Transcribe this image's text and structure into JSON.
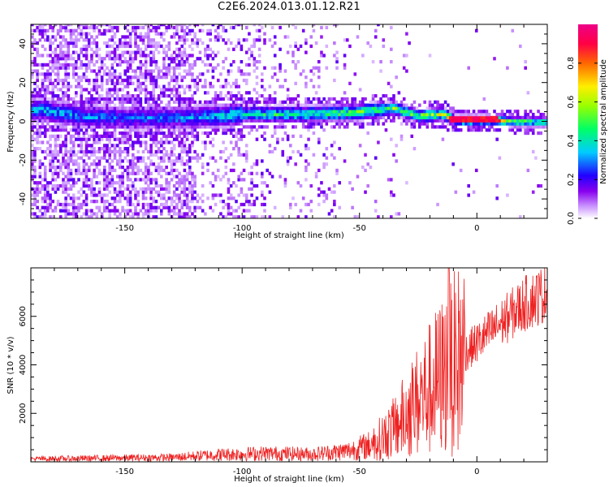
{
  "title": "C2E6.2024.013.01.12.R21",
  "chart_data": [
    {
      "type": "heatmap",
      "xlabel": "Height of straight line (km)",
      "ylabel": "Frequency (Hz)",
      "xlim": [
        -190,
        30
      ],
      "ylim": [
        -50,
        50
      ],
      "xticks": [
        -150,
        -100,
        -50,
        0
      ],
      "yticks": [
        -40,
        -20,
        0,
        20,
        40
      ],
      "colorbar": {
        "label": "Normalized spectral amplitude",
        "range": [
          0.0,
          1.0
        ],
        "ticks": [
          0.0,
          0.2,
          0.4,
          0.6,
          0.8
        ],
        "colors": [
          "#ffffff",
          "#cc99ff",
          "#8800ee",
          "#2200ff",
          "#00ccff",
          "#00ff66",
          "#99ff00",
          "#ffee00",
          "#ff6600",
          "#ff0044",
          "#ee0088"
        ]
      },
      "ridge": [
        {
          "x": -185,
          "f": 5,
          "amp": 0.35
        },
        {
          "x": -170,
          "f": 2,
          "amp": 0.3
        },
        {
          "x": -150,
          "f": 1,
          "amp": 0.28
        },
        {
          "x": -125,
          "f": 1,
          "amp": 0.3
        },
        {
          "x": -100,
          "f": 3,
          "amp": 0.4
        },
        {
          "x": -75,
          "f": 3,
          "amp": 0.45
        },
        {
          "x": -50,
          "f": 4,
          "amp": 0.5
        },
        {
          "x": -36,
          "f": 6,
          "amp": 0.5
        },
        {
          "x": -25,
          "f": 2,
          "amp": 0.55
        },
        {
          "x": -15,
          "f": 3,
          "amp": 0.6
        },
        {
          "x": -10,
          "f": 0,
          "amp": 0.85
        },
        {
          "x": 5,
          "f": 0,
          "amp": 0.85
        },
        {
          "x": 15,
          "f": -1,
          "amp": 0.55
        },
        {
          "x": 28,
          "f": -1,
          "amp": 0.5
        }
      ]
    },
    {
      "type": "line",
      "xlabel": "Height of straight line (km)",
      "ylabel": "SNR (10 * v/v)",
      "xlim": [
        -190,
        30
      ],
      "ylim": [
        0,
        8000
      ],
      "xticks": [
        -150,
        -100,
        -50,
        0
      ],
      "yticks": [
        2000,
        4000,
        6000
      ],
      "color": "#ee2222",
      "trend": [
        {
          "x": -190,
          "y": 120
        },
        {
          "x": -160,
          "y": 150
        },
        {
          "x": -130,
          "y": 180
        },
        {
          "x": -110,
          "y": 300
        },
        {
          "x": -90,
          "y": 350
        },
        {
          "x": -70,
          "y": 320
        },
        {
          "x": -55,
          "y": 450
        },
        {
          "x": -45,
          "y": 700
        },
        {
          "x": -35,
          "y": 1400
        },
        {
          "x": -28,
          "y": 2200
        },
        {
          "x": -20,
          "y": 3000
        },
        {
          "x": -12,
          "y": 3800
        },
        {
          "x": -5,
          "y": 4500
        },
        {
          "x": 0,
          "y": 4900
        },
        {
          "x": 10,
          "y": 5700
        },
        {
          "x": 20,
          "y": 6500
        },
        {
          "x": 30,
          "y": 7000
        }
      ],
      "peak": {
        "x": -12,
        "y": 8000
      }
    }
  ]
}
